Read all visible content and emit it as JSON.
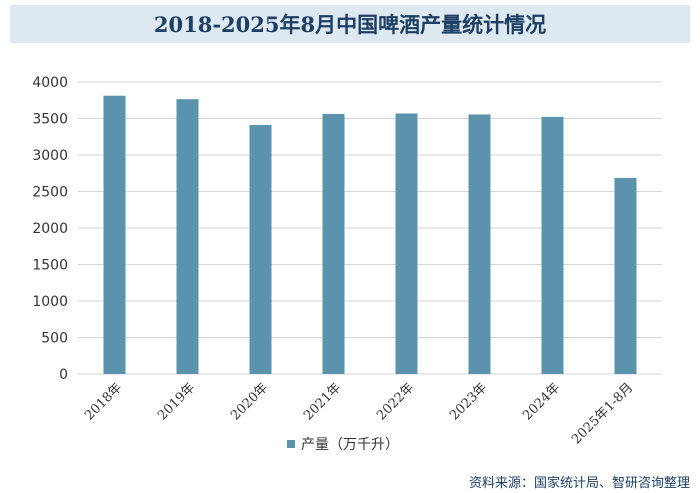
{
  "chart_data": {
    "type": "bar",
    "title": "2018-2025年8月中国啤酒产量统计情况",
    "categories": [
      "2018年",
      "2019年",
      "2020年",
      "2021年",
      "2022年",
      "2023年",
      "2024年",
      "2025年1-8月"
    ],
    "series": [
      {
        "name": "产量（万千升）",
        "values": [
          3812,
          3765,
          3411,
          3562,
          3569,
          3555,
          3522,
          2686
        ]
      }
    ],
    "yticks": [
      0,
      500,
      1000,
      1500,
      2000,
      2500,
      3000,
      3500,
      4000
    ],
    "ylim": [
      0,
      4000
    ],
    "xlabel": "",
    "ylabel": "",
    "grid": true,
    "legend_position": "bottom-center",
    "bar_color": "#5b93ac",
    "grid_color": "#d4d4d4"
  },
  "source": "资料来源：国家统计局、智研咨询整理"
}
